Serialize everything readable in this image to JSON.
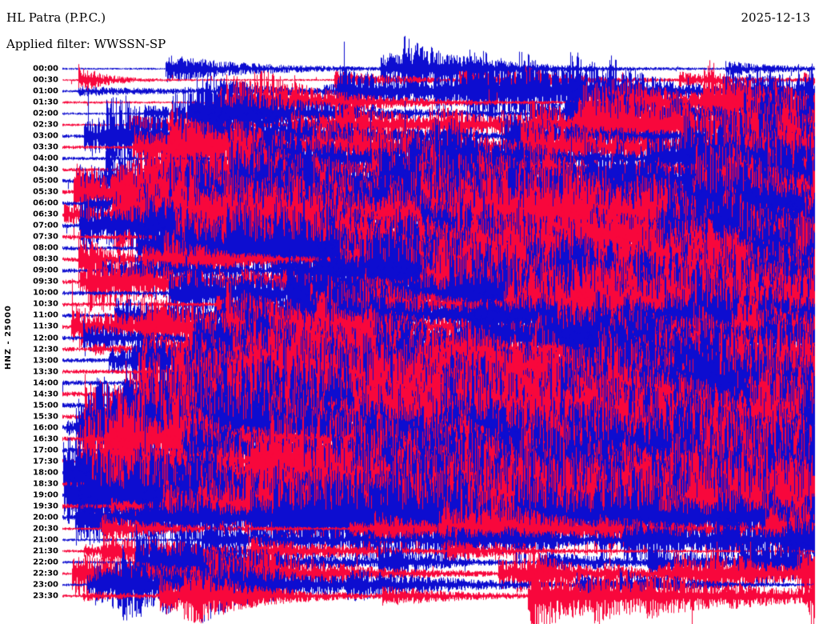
{
  "header": {
    "station_title": "HL Patra (P.P.C.)",
    "date": "2025-12-13",
    "filter_label": "Applied filter: WWSSN-SP"
  },
  "axis": {
    "left_label": "HNZ - 25000"
  },
  "chart_data": {
    "type": "line",
    "subtype": "helicorder-seismogram",
    "title": "HL Patra (P.P.C.)",
    "date": "2025-12-13",
    "filter": "WWSSN-SP",
    "channel": "HNZ",
    "amplitude_scale": 25000,
    "rows": 48,
    "minutes_per_row": 30,
    "row_times": [
      "00:00",
      "00:30",
      "01:00",
      "01:30",
      "02:00",
      "02:30",
      "03:00",
      "03:30",
      "04:00",
      "04:30",
      "05:00",
      "05:30",
      "06:00",
      "06:30",
      "07:00",
      "07:30",
      "08:00",
      "08:30",
      "09:00",
      "09:30",
      "10:00",
      "10:30",
      "11:00",
      "11:30",
      "12:00",
      "12:30",
      "13:00",
      "13:30",
      "14:00",
      "14:30",
      "15:00",
      "15:30",
      "16:00",
      "16:30",
      "17:00",
      "17:30",
      "18:00",
      "18:30",
      "19:00",
      "19:30",
      "20:00",
      "20:30",
      "21:00",
      "21:30",
      "22:00",
      "22:30",
      "23:00",
      "23:30"
    ],
    "trace_colors": {
      "even_rows": "#0d0dd0",
      "odd_rows": "#f8073c"
    },
    "background": "#ffffff",
    "legend": "off",
    "grid": "off",
    "seed": 20251213
  }
}
